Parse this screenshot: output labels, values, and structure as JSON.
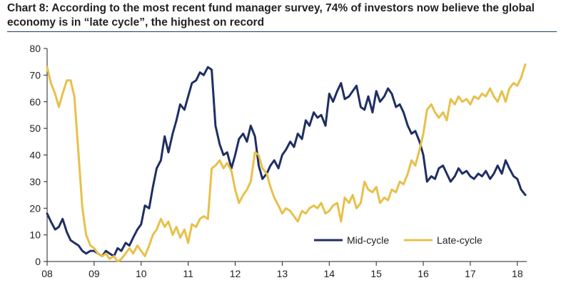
{
  "chart_data": {
    "type": "line",
    "title_line1": "Chart 8: According to the most recent fund manager survey, 74% of investors now believe the global",
    "title_line2": "economy is in “late cycle”, the highest on record",
    "xlabel": "",
    "ylabel": "",
    "xlim": [
      2008,
      2018.2
    ],
    "ylim": [
      0,
      80
    ],
    "x_ticks": [
      {
        "value": 2008,
        "label": "08"
      },
      {
        "value": 2009,
        "label": "09"
      },
      {
        "value": 2010,
        "label": "10"
      },
      {
        "value": 2011,
        "label": "11"
      },
      {
        "value": 2012,
        "label": "12"
      },
      {
        "value": 2013,
        "label": "13"
      },
      {
        "value": 2014,
        "label": "14"
      },
      {
        "value": 2015,
        "label": "15"
      },
      {
        "value": 2016,
        "label": "16"
      },
      {
        "value": 2017,
        "label": "17"
      },
      {
        "value": 2018,
        "label": "18"
      }
    ],
    "y_ticks": [
      0,
      10,
      20,
      30,
      40,
      50,
      60,
      70,
      80
    ],
    "legend_position": "bottom-right",
    "series": [
      {
        "name": "Mid-cycle",
        "color": "#1f2f63",
        "points": [
          [
            2008.0,
            18
          ],
          [
            2008.08,
            15
          ],
          [
            2008.17,
            12
          ],
          [
            2008.25,
            13
          ],
          [
            2008.33,
            16
          ],
          [
            2008.42,
            11
          ],
          [
            2008.5,
            8
          ],
          [
            2008.58,
            7
          ],
          [
            2008.67,
            6
          ],
          [
            2008.75,
            4
          ],
          [
            2008.83,
            3
          ],
          [
            2008.92,
            4
          ],
          [
            2009.0,
            4
          ],
          [
            2009.08,
            3
          ],
          [
            2009.17,
            2
          ],
          [
            2009.25,
            4
          ],
          [
            2009.33,
            3
          ],
          [
            2009.42,
            2
          ],
          [
            2009.5,
            5
          ],
          [
            2009.58,
            4
          ],
          [
            2009.67,
            7
          ],
          [
            2009.75,
            6
          ],
          [
            2009.83,
            9
          ],
          [
            2009.92,
            12
          ],
          [
            2010.0,
            14
          ],
          [
            2010.08,
            21
          ],
          [
            2010.17,
            20
          ],
          [
            2010.25,
            28
          ],
          [
            2010.33,
            35
          ],
          [
            2010.42,
            38
          ],
          [
            2010.5,
            47
          ],
          [
            2010.58,
            41
          ],
          [
            2010.67,
            48
          ],
          [
            2010.75,
            53
          ],
          [
            2010.83,
            59
          ],
          [
            2010.92,
            57
          ],
          [
            2011.0,
            62
          ],
          [
            2011.08,
            67
          ],
          [
            2011.17,
            68
          ],
          [
            2011.25,
            71
          ],
          [
            2011.33,
            70
          ],
          [
            2011.42,
            73
          ],
          [
            2011.5,
            72
          ],
          [
            2011.58,
            51
          ],
          [
            2011.67,
            44
          ],
          [
            2011.75,
            40
          ],
          [
            2011.83,
            41
          ],
          [
            2011.92,
            35
          ],
          [
            2012.0,
            40
          ],
          [
            2012.08,
            46
          ],
          [
            2012.17,
            48
          ],
          [
            2012.25,
            45
          ],
          [
            2012.33,
            51
          ],
          [
            2012.42,
            47
          ],
          [
            2012.5,
            36
          ],
          [
            2012.58,
            31
          ],
          [
            2012.67,
            33
          ],
          [
            2012.75,
            36
          ],
          [
            2012.83,
            38
          ],
          [
            2012.92,
            35
          ],
          [
            2013.0,
            40
          ],
          [
            2013.08,
            42
          ],
          [
            2013.17,
            45
          ],
          [
            2013.25,
            43
          ],
          [
            2013.33,
            48
          ],
          [
            2013.42,
            46
          ],
          [
            2013.5,
            53
          ],
          [
            2013.58,
            51
          ],
          [
            2013.67,
            56
          ],
          [
            2013.75,
            54
          ],
          [
            2013.83,
            55
          ],
          [
            2013.92,
            51
          ],
          [
            2014.0,
            63
          ],
          [
            2014.08,
            60
          ],
          [
            2014.17,
            64
          ],
          [
            2014.25,
            67
          ],
          [
            2014.33,
            61
          ],
          [
            2014.42,
            62
          ],
          [
            2014.5,
            64
          ],
          [
            2014.58,
            66
          ],
          [
            2014.67,
            58
          ],
          [
            2014.75,
            57
          ],
          [
            2014.83,
            62
          ],
          [
            2014.92,
            56
          ],
          [
            2015.0,
            64
          ],
          [
            2015.08,
            60
          ],
          [
            2015.17,
            62
          ],
          [
            2015.25,
            65
          ],
          [
            2015.33,
            63
          ],
          [
            2015.42,
            58
          ],
          [
            2015.5,
            59
          ],
          [
            2015.58,
            56
          ],
          [
            2015.67,
            51
          ],
          [
            2015.75,
            48
          ],
          [
            2015.83,
            49
          ],
          [
            2015.92,
            45
          ],
          [
            2016.0,
            40
          ],
          [
            2016.08,
            30
          ],
          [
            2016.17,
            32
          ],
          [
            2016.25,
            31
          ],
          [
            2016.33,
            35
          ],
          [
            2016.42,
            36
          ],
          [
            2016.5,
            33
          ],
          [
            2016.58,
            30
          ],
          [
            2016.67,
            32
          ],
          [
            2016.75,
            35
          ],
          [
            2016.83,
            33
          ],
          [
            2016.92,
            34
          ],
          [
            2017.0,
            32
          ],
          [
            2017.08,
            31
          ],
          [
            2017.17,
            33
          ],
          [
            2017.25,
            32
          ],
          [
            2017.33,
            34
          ],
          [
            2017.42,
            31
          ],
          [
            2017.5,
            33
          ],
          [
            2017.58,
            36
          ],
          [
            2017.67,
            33
          ],
          [
            2017.75,
            38
          ],
          [
            2017.83,
            35
          ],
          [
            2017.92,
            32
          ],
          [
            2018.0,
            31
          ],
          [
            2018.08,
            27
          ],
          [
            2018.17,
            25
          ]
        ]
      },
      {
        "name": "Late-cycle",
        "color": "#e8c04a",
        "points": [
          [
            2008.0,
            73
          ],
          [
            2008.08,
            67
          ],
          [
            2008.17,
            63
          ],
          [
            2008.25,
            58
          ],
          [
            2008.33,
            63
          ],
          [
            2008.42,
            68
          ],
          [
            2008.5,
            68
          ],
          [
            2008.58,
            62
          ],
          [
            2008.67,
            40
          ],
          [
            2008.75,
            20
          ],
          [
            2008.83,
            10
          ],
          [
            2008.92,
            6
          ],
          [
            2009.0,
            5
          ],
          [
            2009.08,
            3
          ],
          [
            2009.17,
            2
          ],
          [
            2009.25,
            3
          ],
          [
            2009.33,
            1
          ],
          [
            2009.42,
            2
          ],
          [
            2009.5,
            0
          ],
          [
            2009.58,
            1
          ],
          [
            2009.67,
            3
          ],
          [
            2009.75,
            5
          ],
          [
            2009.83,
            3
          ],
          [
            2009.92,
            6
          ],
          [
            2010.0,
            4
          ],
          [
            2010.08,
            2
          ],
          [
            2010.17,
            6
          ],
          [
            2010.25,
            10
          ],
          [
            2010.33,
            12
          ],
          [
            2010.42,
            16
          ],
          [
            2010.5,
            13
          ],
          [
            2010.58,
            15
          ],
          [
            2010.67,
            10
          ],
          [
            2010.75,
            13
          ],
          [
            2010.83,
            9
          ],
          [
            2010.92,
            12
          ],
          [
            2011.0,
            7
          ],
          [
            2011.08,
            14
          ],
          [
            2011.17,
            13
          ],
          [
            2011.25,
            16
          ],
          [
            2011.33,
            17
          ],
          [
            2011.42,
            16
          ],
          [
            2011.5,
            35
          ],
          [
            2011.58,
            36
          ],
          [
            2011.67,
            38
          ],
          [
            2011.75,
            35
          ],
          [
            2011.83,
            37
          ],
          [
            2011.92,
            34
          ],
          [
            2012.0,
            27
          ],
          [
            2012.08,
            22
          ],
          [
            2012.17,
            25
          ],
          [
            2012.25,
            27
          ],
          [
            2012.33,
            30
          ],
          [
            2012.42,
            41
          ],
          [
            2012.5,
            40
          ],
          [
            2012.58,
            35
          ],
          [
            2012.67,
            33
          ],
          [
            2012.75,
            28
          ],
          [
            2012.83,
            24
          ],
          [
            2012.92,
            21
          ],
          [
            2013.0,
            18
          ],
          [
            2013.08,
            20
          ],
          [
            2013.17,
            19
          ],
          [
            2013.25,
            17
          ],
          [
            2013.33,
            15
          ],
          [
            2013.42,
            19
          ],
          [
            2013.5,
            18
          ],
          [
            2013.58,
            20
          ],
          [
            2013.67,
            21
          ],
          [
            2013.75,
            20
          ],
          [
            2013.83,
            22
          ],
          [
            2013.92,
            18
          ],
          [
            2014.0,
            19
          ],
          [
            2014.08,
            21
          ],
          [
            2014.17,
            22
          ],
          [
            2014.25,
            15
          ],
          [
            2014.33,
            24
          ],
          [
            2014.42,
            22
          ],
          [
            2014.5,
            25
          ],
          [
            2014.58,
            20
          ],
          [
            2014.67,
            22
          ],
          [
            2014.75,
            30
          ],
          [
            2014.83,
            27
          ],
          [
            2014.92,
            26
          ],
          [
            2015.0,
            28
          ],
          [
            2015.08,
            22
          ],
          [
            2015.17,
            24
          ],
          [
            2015.25,
            23
          ],
          [
            2015.33,
            27
          ],
          [
            2015.42,
            26
          ],
          [
            2015.5,
            30
          ],
          [
            2015.58,
            29
          ],
          [
            2015.67,
            33
          ],
          [
            2015.75,
            38
          ],
          [
            2015.83,
            36
          ],
          [
            2015.92,
            42
          ],
          [
            2016.0,
            48
          ],
          [
            2016.08,
            57
          ],
          [
            2016.17,
            59
          ],
          [
            2016.25,
            56
          ],
          [
            2016.33,
            54
          ],
          [
            2016.42,
            56
          ],
          [
            2016.5,
            53
          ],
          [
            2016.58,
            61
          ],
          [
            2016.67,
            59
          ],
          [
            2016.75,
            62
          ],
          [
            2016.83,
            60
          ],
          [
            2016.92,
            61
          ],
          [
            2017.0,
            59
          ],
          [
            2017.08,
            62
          ],
          [
            2017.17,
            61
          ],
          [
            2017.25,
            63
          ],
          [
            2017.33,
            62
          ],
          [
            2017.42,
            65
          ],
          [
            2017.5,
            62
          ],
          [
            2017.58,
            60
          ],
          [
            2017.67,
            64
          ],
          [
            2017.75,
            60
          ],
          [
            2017.83,
            65
          ],
          [
            2017.92,
            67
          ],
          [
            2018.0,
            66
          ],
          [
            2018.08,
            69
          ],
          [
            2018.17,
            74
          ]
        ]
      }
    ]
  }
}
